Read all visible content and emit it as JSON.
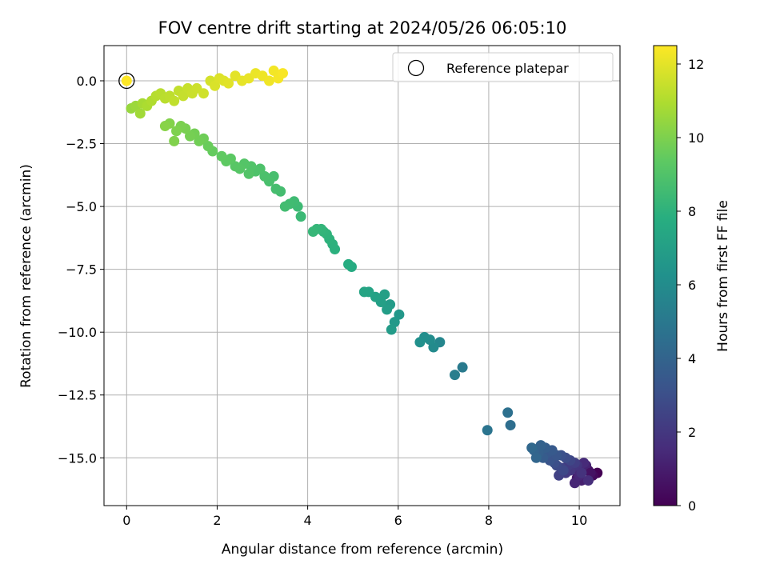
{
  "chart_data": {
    "type": "scatter",
    "title": "FOV centre drift starting at 2024/05/26 06:05:10",
    "xlabel": "Angular distance from reference (arcmin)",
    "ylabel": "Rotation from reference (arcmin)",
    "xlim": [
      -0.5,
      10.9
    ],
    "ylim": [
      -16.9,
      1.4
    ],
    "xticks": [
      0,
      2,
      4,
      6,
      8,
      10
    ],
    "yticks": [
      0.0,
      -2.5,
      -5.0,
      -7.5,
      -10.0,
      -12.5,
      -15.0
    ],
    "xtick_labels": [
      "0",
      "2",
      "4",
      "6",
      "8",
      "10"
    ],
    "ytick_labels": [
      "0.0",
      "−2.5",
      "−5.0",
      "−7.5",
      "−10.0",
      "−12.5",
      "−15.0"
    ],
    "grid": true,
    "colormap": "viridis",
    "colorbar": {
      "label": "Hours from first FF file",
      "range": [
        0,
        12.5
      ],
      "ticks": [
        0,
        2,
        4,
        6,
        8,
        10,
        12
      ],
      "tick_labels": [
        "0",
        "2",
        "4",
        "6",
        "8",
        "10",
        "12"
      ]
    },
    "legend": {
      "location": "upper right",
      "entries": [
        "Reference platepar"
      ]
    },
    "reference_point": {
      "x": 0.0,
      "y": 0.0
    },
    "series": [
      {
        "x": [
          10.4,
          10.3,
          10.2,
          10.1,
          10.0,
          10.15,
          9.95,
          10.05,
          10.25,
          9.9,
          10.1,
          9.85,
          10.0,
          9.95,
          10.2,
          9.8,
          10.05,
          9.75,
          9.9,
          9.7,
          9.6,
          9.55,
          9.8,
          9.65,
          9.5,
          9.7,
          9.45,
          9.6,
          9.35,
          9.5,
          9.3,
          9.4,
          9.2,
          9.25,
          9.1,
          9.15,
          9.0,
          9.05,
          8.95,
          8.48,
          8.42,
          7.97,
          7.42,
          7.25,
          6.92,
          6.78,
          6.7,
          6.58,
          6.48,
          6.02,
          5.92,
          5.85,
          5.82,
          5.75,
          5.7,
          5.62,
          5.5,
          5.35,
          5.25,
          4.97,
          4.9,
          4.6,
          4.55,
          4.48,
          4.42,
          4.35,
          4.3,
          4.2,
          4.12,
          3.85,
          3.78,
          3.7,
          3.6,
          3.5,
          3.4,
          3.3,
          3.25,
          3.15,
          3.05,
          2.95,
          2.85,
          2.75,
          2.7,
          2.6,
          2.5,
          2.4,
          2.3,
          2.2,
          2.1,
          1.9,
          1.8,
          1.7,
          1.6,
          1.5,
          1.4,
          1.3,
          1.2,
          1.1,
          1.05,
          0.95,
          0.85,
          0.0,
          0.1,
          0.2,
          0.3,
          0.35,
          0.45,
          0.55,
          0.65,
          0.75,
          0.85,
          0.95,
          1.05,
          1.15,
          1.25,
          1.35,
          1.45,
          1.55,
          1.7,
          1.85,
          1.95,
          2.05,
          2.15,
          2.25,
          2.4,
          2.55,
          2.7,
          2.85,
          3.0,
          3.15,
          3.25,
          3.35,
          3.45
        ],
        "y": [
          -15.6,
          -15.7,
          -15.5,
          -15.4,
          -15.5,
          -15.3,
          -15.8,
          -15.9,
          -15.6,
          -16.0,
          -15.2,
          -15.4,
          -15.7,
          -15.3,
          -15.9,
          -15.5,
          -15.6,
          -15.3,
          -15.2,
          -15.6,
          -15.4,
          -15.7,
          -15.1,
          -15.5,
          -15.3,
          -15.0,
          -15.2,
          -14.9,
          -15.1,
          -14.9,
          -14.8,
          -14.7,
          -15.0,
          -14.6,
          -14.8,
          -14.5,
          -14.7,
          -15.0,
          -14.6,
          -13.7,
          -13.2,
          -13.9,
          -11.4,
          -11.7,
          -10.4,
          -10.6,
          -10.3,
          -10.2,
          -10.4,
          -9.3,
          -9.6,
          -9.9,
          -8.9,
          -9.1,
          -8.5,
          -8.8,
          -8.6,
          -8.4,
          -8.4,
          -7.4,
          -7.3,
          -6.7,
          -6.5,
          -6.3,
          -6.1,
          -6.0,
          -5.9,
          -5.9,
          -6.0,
          -5.4,
          -5.0,
          -4.8,
          -4.9,
          -5.0,
          -4.4,
          -4.3,
          -3.8,
          -4.0,
          -3.8,
          -3.5,
          -3.6,
          -3.4,
          -3.7,
          -3.3,
          -3.5,
          -3.4,
          -3.1,
          -3.2,
          -3.0,
          -2.8,
          -2.6,
          -2.3,
          -2.4,
          -2.1,
          -2.2,
          -1.9,
          -1.8,
          -2.0,
          -2.4,
          -1.7,
          -1.8,
          0.0,
          -1.1,
          -1.0,
          -1.3,
          -0.9,
          -1.0,
          -0.8,
          -0.6,
          -0.5,
          -0.7,
          -0.6,
          -0.8,
          -0.4,
          -0.6,
          -0.3,
          -0.5,
          -0.3,
          -0.5,
          0.0,
          -0.2,
          0.1,
          0.0,
          -0.1,
          0.2,
          0.0,
          0.1,
          0.3,
          0.2,
          0.0,
          0.4,
          0.1,
          0.3
        ],
        "c": [
          0.0,
          0.3,
          0.5,
          0.8,
          1.0,
          1.2,
          0.9,
          1.1,
          0.6,
          1.3,
          1.5,
          1.7,
          1.4,
          1.9,
          1.6,
          2.0,
          1.8,
          2.2,
          2.3,
          2.1,
          2.5,
          2.4,
          2.6,
          2.7,
          2.8,
          2.9,
          3.0,
          3.1,
          3.2,
          3.3,
          3.4,
          3.5,
          3.6,
          3.7,
          3.8,
          3.9,
          4.0,
          4.1,
          4.2,
          4.5,
          4.6,
          4.8,
          5.1,
          5.3,
          5.7,
          5.9,
          6.0,
          6.1,
          6.2,
          6.6,
          6.7,
          6.8,
          6.8,
          6.9,
          7.0,
          7.0,
          7.1,
          7.2,
          7.3,
          7.6,
          7.7,
          7.9,
          7.95,
          8.0,
          8.05,
          8.1,
          8.15,
          8.2,
          8.25,
          8.4,
          8.45,
          8.5,
          8.55,
          8.6,
          8.65,
          8.7,
          8.75,
          8.8,
          8.85,
          8.9,
          8.95,
          9.0,
          9.05,
          9.1,
          9.15,
          9.2,
          9.3,
          9.35,
          9.4,
          9.5,
          9.6,
          9.7,
          9.75,
          9.8,
          9.85,
          9.9,
          9.95,
          10.0,
          10.05,
          10.1,
          10.2,
          12.5,
          10.5,
          10.6,
          10.7,
          10.8,
          10.9,
          11.0,
          11.1,
          11.15,
          11.2,
          11.25,
          11.3,
          11.35,
          11.4,
          11.45,
          11.5,
          11.55,
          11.6,
          11.7,
          11.8,
          11.85,
          11.9,
          11.95,
          12.0,
          12.05,
          12.1,
          12.15,
          12.2,
          12.25,
          12.3,
          12.35,
          12.4
        ]
      }
    ]
  }
}
